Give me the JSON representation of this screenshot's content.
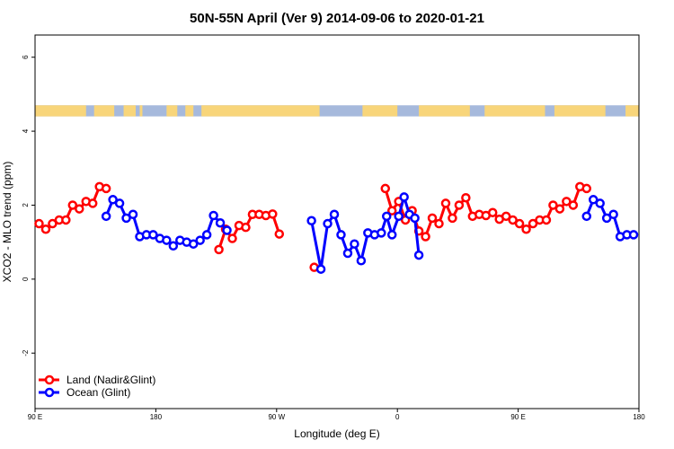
{
  "chart_data": {
    "type": "line",
    "title": "50N-55N April (Ver 9)   2014-09-06 to 2020-01-21",
    "xlabel": "Longitude (deg E)",
    "ylabel": "XCO2 - MLO trend (ppm)",
    "xlim": [
      90,
      540
    ],
    "ylim": [
      -3.5,
      6.6
    ],
    "x_ticks": [
      {
        "value": 90,
        "label": "90 E"
      },
      {
        "value": 180,
        "label": "180"
      },
      {
        "value": 270,
        "label": "90 W"
      },
      {
        "value": 360,
        "label": "0"
      },
      {
        "value": 450,
        "label": "90 E"
      },
      {
        "value": 540,
        "label": "180"
      }
    ],
    "y_ticks": [
      {
        "value": -2,
        "label": "-2"
      },
      {
        "value": 0,
        "label": "0"
      },
      {
        "value": 2,
        "label": "2"
      },
      {
        "value": 4,
        "label": "4"
      },
      {
        "value": 6,
        "label": "6"
      }
    ],
    "grid": false,
    "legend_position": "bottom-left",
    "landmask_band": {
      "y_range": [
        4.4,
        4.7
      ],
      "land_color": "#f8d57a",
      "ocean_color": "#a6b9dc",
      "land_x_ranges": [
        [
          90,
          128
        ],
        [
          134,
          149
        ],
        [
          156,
          165
        ],
        [
          168,
          170
        ],
        [
          188,
          196
        ],
        [
          202,
          208
        ],
        [
          214,
          302
        ],
        [
          334,
          360
        ],
        [
          376,
          414
        ],
        [
          425,
          470
        ],
        [
          477,
          515
        ],
        [
          530,
          540
        ]
      ]
    },
    "series": [
      {
        "name": "Land (Nadir&Glint)",
        "color": "#ff0000",
        "segments": [
          [
            [
              93,
              1.5
            ],
            [
              98,
              1.35
            ],
            [
              103,
              1.5
            ],
            [
              108,
              1.6
            ],
            [
              113,
              1.6
            ],
            [
              118,
              2.0
            ],
            [
              123,
              1.9
            ],
            [
              128,
              2.1
            ],
            [
              133,
              2.05
            ],
            [
              138,
              2.5
            ],
            [
              143,
              2.45
            ]
          ],
          [
            [
              227,
              0.8
            ],
            [
              232,
              1.35
            ],
            [
              237,
              1.1
            ],
            [
              242,
              1.45
            ],
            [
              247,
              1.4
            ],
            [
              252,
              1.75
            ],
            [
              257,
              1.75
            ],
            [
              262,
              1.72
            ],
            [
              267,
              1.76
            ],
            [
              272,
              1.22
            ]
          ],
          [
            [
              298,
              0.32
            ]
          ],
          [
            [
              351,
              2.45
            ],
            [
              356,
              1.85
            ],
            [
              361,
              2.1
            ],
            [
              366,
              1.6
            ],
            [
              371,
              1.85
            ],
            [
              376,
              1.3
            ],
            [
              381,
              1.15
            ],
            [
              386,
              1.65
            ],
            [
              391,
              1.5
            ],
            [
              396,
              2.05
            ],
            [
              401,
              1.65
            ],
            [
              406,
              2.0
            ],
            [
              411,
              2.2
            ],
            [
              416,
              1.7
            ],
            [
              421,
              1.75
            ],
            [
              426,
              1.72
            ],
            [
              431,
              1.8
            ],
            [
              436,
              1.62
            ],
            [
              441,
              1.7
            ],
            [
              446,
              1.6
            ],
            [
              451,
              1.5
            ],
            [
              456,
              1.35
            ],
            [
              461,
              1.5
            ],
            [
              466,
              1.6
            ],
            [
              471,
              1.6
            ],
            [
              476,
              2.0
            ],
            [
              481,
              1.9
            ],
            [
              486,
              2.1
            ],
            [
              491,
              2.0
            ],
            [
              496,
              2.5
            ],
            [
              501,
              2.45
            ]
          ]
        ]
      },
      {
        "name": "Ocean (Glint)",
        "color": "#0000ff",
        "segments": [
          [
            [
              143,
              1.7
            ],
            [
              148,
              2.15
            ],
            [
              153,
              2.05
            ],
            [
              158,
              1.65
            ],
            [
              163,
              1.75
            ],
            [
              168,
              1.15
            ],
            [
              173,
              1.2
            ],
            [
              178,
              1.2
            ],
            [
              183,
              1.1
            ],
            [
              188,
              1.05
            ],
            [
              193,
              0.9
            ],
            [
              198,
              1.05
            ],
            [
              203,
              1.0
            ],
            [
              208,
              0.95
            ],
            [
              213,
              1.05
            ],
            [
              218,
              1.2
            ],
            [
              223,
              1.72
            ],
            [
              228,
              1.52
            ],
            [
              233,
              1.32
            ]
          ],
          [
            [
              296,
              1.58
            ],
            [
              303,
              0.27
            ],
            [
              308,
              1.5
            ],
            [
              313,
              1.75
            ],
            [
              318,
              1.2
            ],
            [
              323,
              0.7
            ],
            [
              328,
              0.95
            ],
            [
              333,
              0.5
            ],
            [
              338,
              1.25
            ],
            [
              343,
              1.2
            ],
            [
              348,
              1.25
            ],
            [
              352,
              1.7
            ],
            [
              356,
              1.2
            ],
            [
              361,
              1.7
            ],
            [
              365,
              2.22
            ],
            [
              369,
              1.75
            ],
            [
              373,
              1.65
            ],
            [
              376,
              0.65
            ]
          ],
          [
            [
              501,
              1.7
            ],
            [
              506,
              2.15
            ],
            [
              511,
              2.05
            ],
            [
              516,
              1.65
            ],
            [
              521,
              1.75
            ],
            [
              526,
              1.15
            ],
            [
              531,
              1.2
            ],
            [
              536,
              1.2
            ]
          ]
        ]
      }
    ]
  }
}
